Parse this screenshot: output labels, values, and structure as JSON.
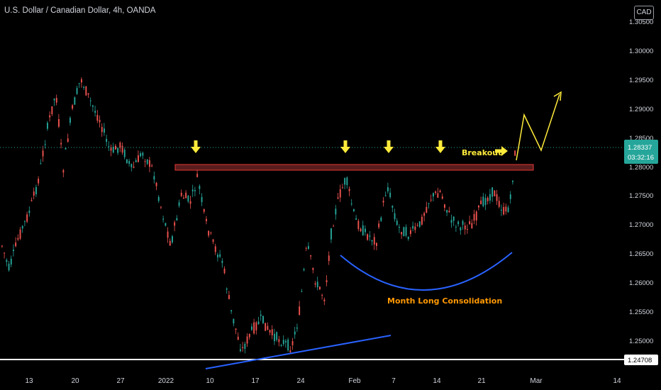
{
  "header": {
    "title": "U.S. Dollar / Canadian Dollar, 4h, OANDA",
    "currency_badge": "CAD"
  },
  "price_axis": {
    "labels": [
      "1.30500",
      "1.30000",
      "1.29500",
      "1.29000",
      "1.28500",
      "1.28000",
      "1.27500",
      "1.27000",
      "1.26500",
      "1.26000",
      "1.25500",
      "1.25000"
    ],
    "current_price": "1.28337",
    "countdown": "03:32:16",
    "support_price": "1.24708"
  },
  "time_axis": {
    "labels": [
      "13",
      "20",
      "27",
      "2022",
      "10",
      "17",
      "24",
      "Feb",
      "7",
      "14",
      "21",
      "Mar",
      "14"
    ]
  },
  "annotations": {
    "breakout": "Breakout",
    "consolidation": "Month Long Consolidation"
  },
  "colors": {
    "bull": "#26a69a",
    "bear": "#ef5350",
    "resistance_fill": "#ff5252",
    "resistance_border": "#e53935",
    "trendline": "#2962ff",
    "consolidation_curve": "#2962ff",
    "arrows": "#ffeb3b",
    "projection": "#ffeb3b",
    "consolidation_text": "#ff9800",
    "price_badge": "#26a69a"
  }
}
